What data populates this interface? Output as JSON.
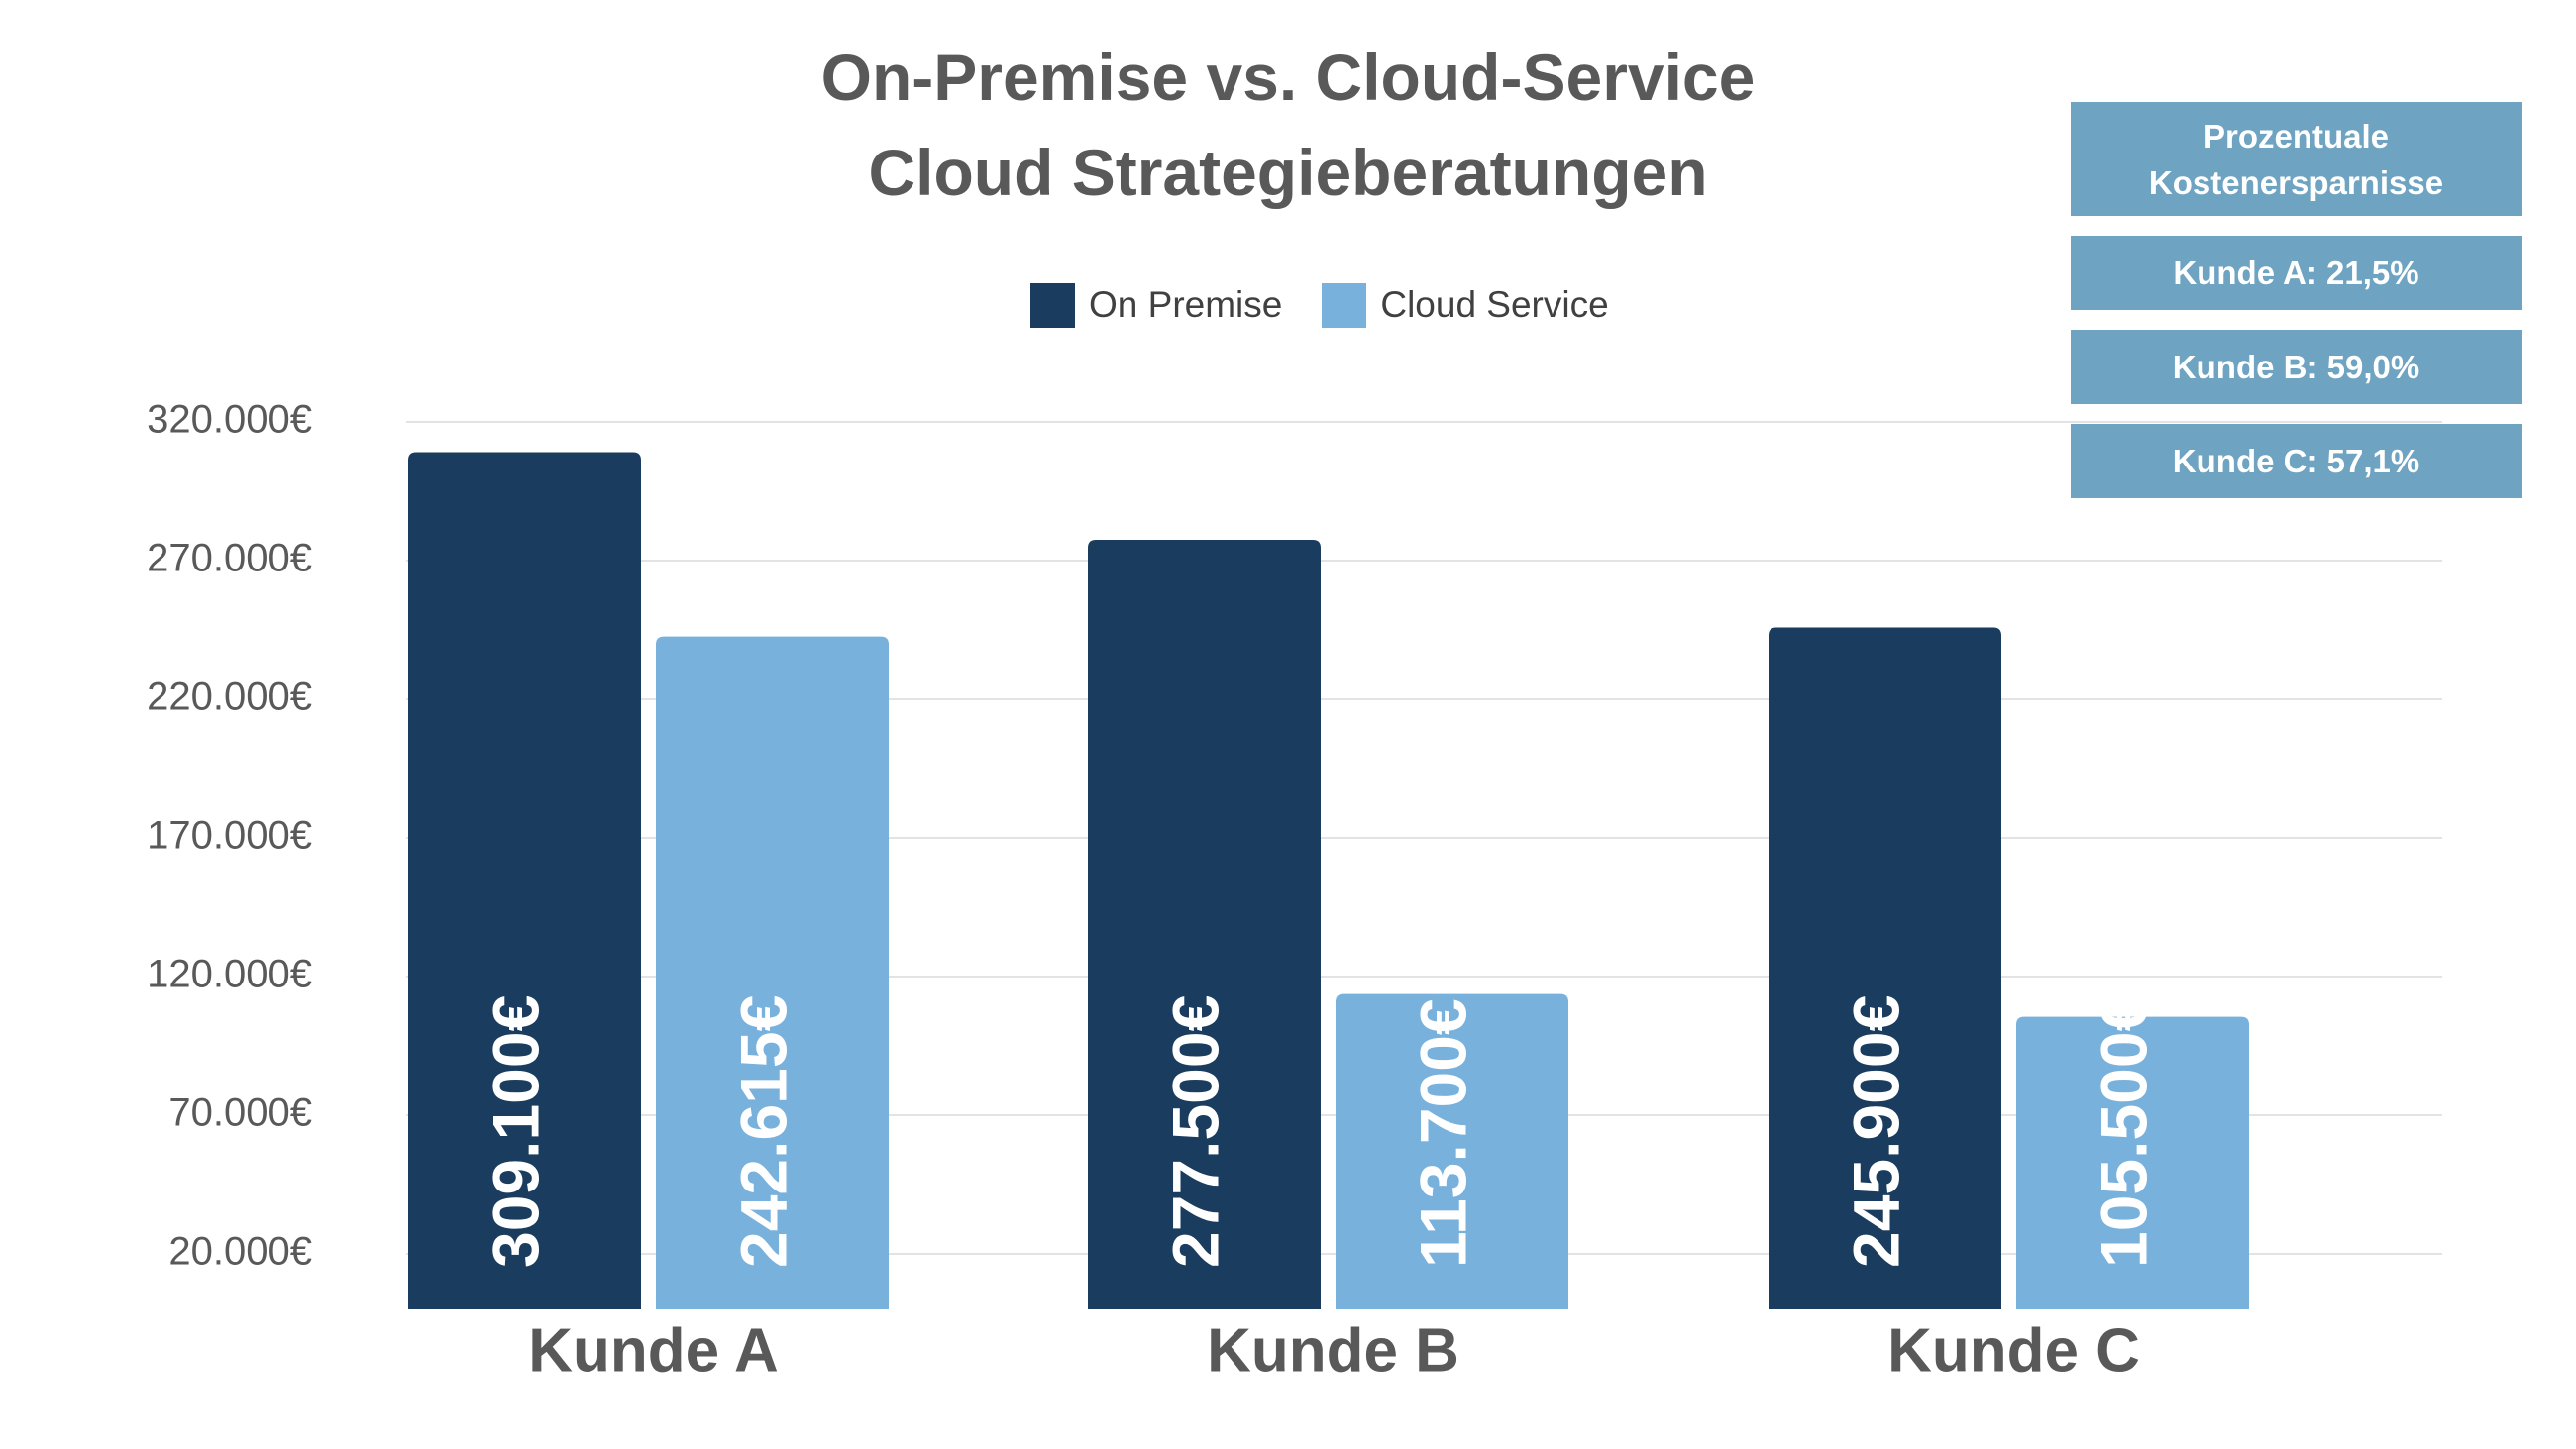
{
  "chart_data": {
    "type": "bar",
    "title": "On-Premise vs. Cloud-Service",
    "subtitle": "Cloud Strategieberatungen",
    "categories": [
      "Kunde A",
      "Kunde B",
      "Kunde C"
    ],
    "series": [
      {
        "name": "On Premise",
        "color": "#1a3c5e",
        "values": [
          309100,
          277500,
          245900
        ],
        "labels": [
          "309.100€",
          "277.500€",
          "245.900€"
        ]
      },
      {
        "name": "Cloud Service",
        "color": "#79b1dd",
        "values": [
          242615,
          113700,
          105500
        ],
        "labels": [
          "242.615€",
          "113.700€",
          "105.500€"
        ]
      }
    ],
    "y_ticks": [
      20000,
      70000,
      120000,
      170000,
      220000,
      270000,
      320000
    ],
    "y_tick_labels": [
      "20.000€",
      "70.000€",
      "120.000€",
      "170.000€",
      "220.000€",
      "270.000€",
      "320.000€"
    ],
    "ylim": [
      0,
      330000
    ],
    "grid": true,
    "legend_position": "top"
  },
  "savings": {
    "header": "Prozentuale Kostenersparnisse",
    "items": [
      "Kunde A: 21,5%",
      "Kunde B: 59,0%",
      "Kunde C: 57,1%"
    ],
    "color": "#6ea3c1"
  }
}
